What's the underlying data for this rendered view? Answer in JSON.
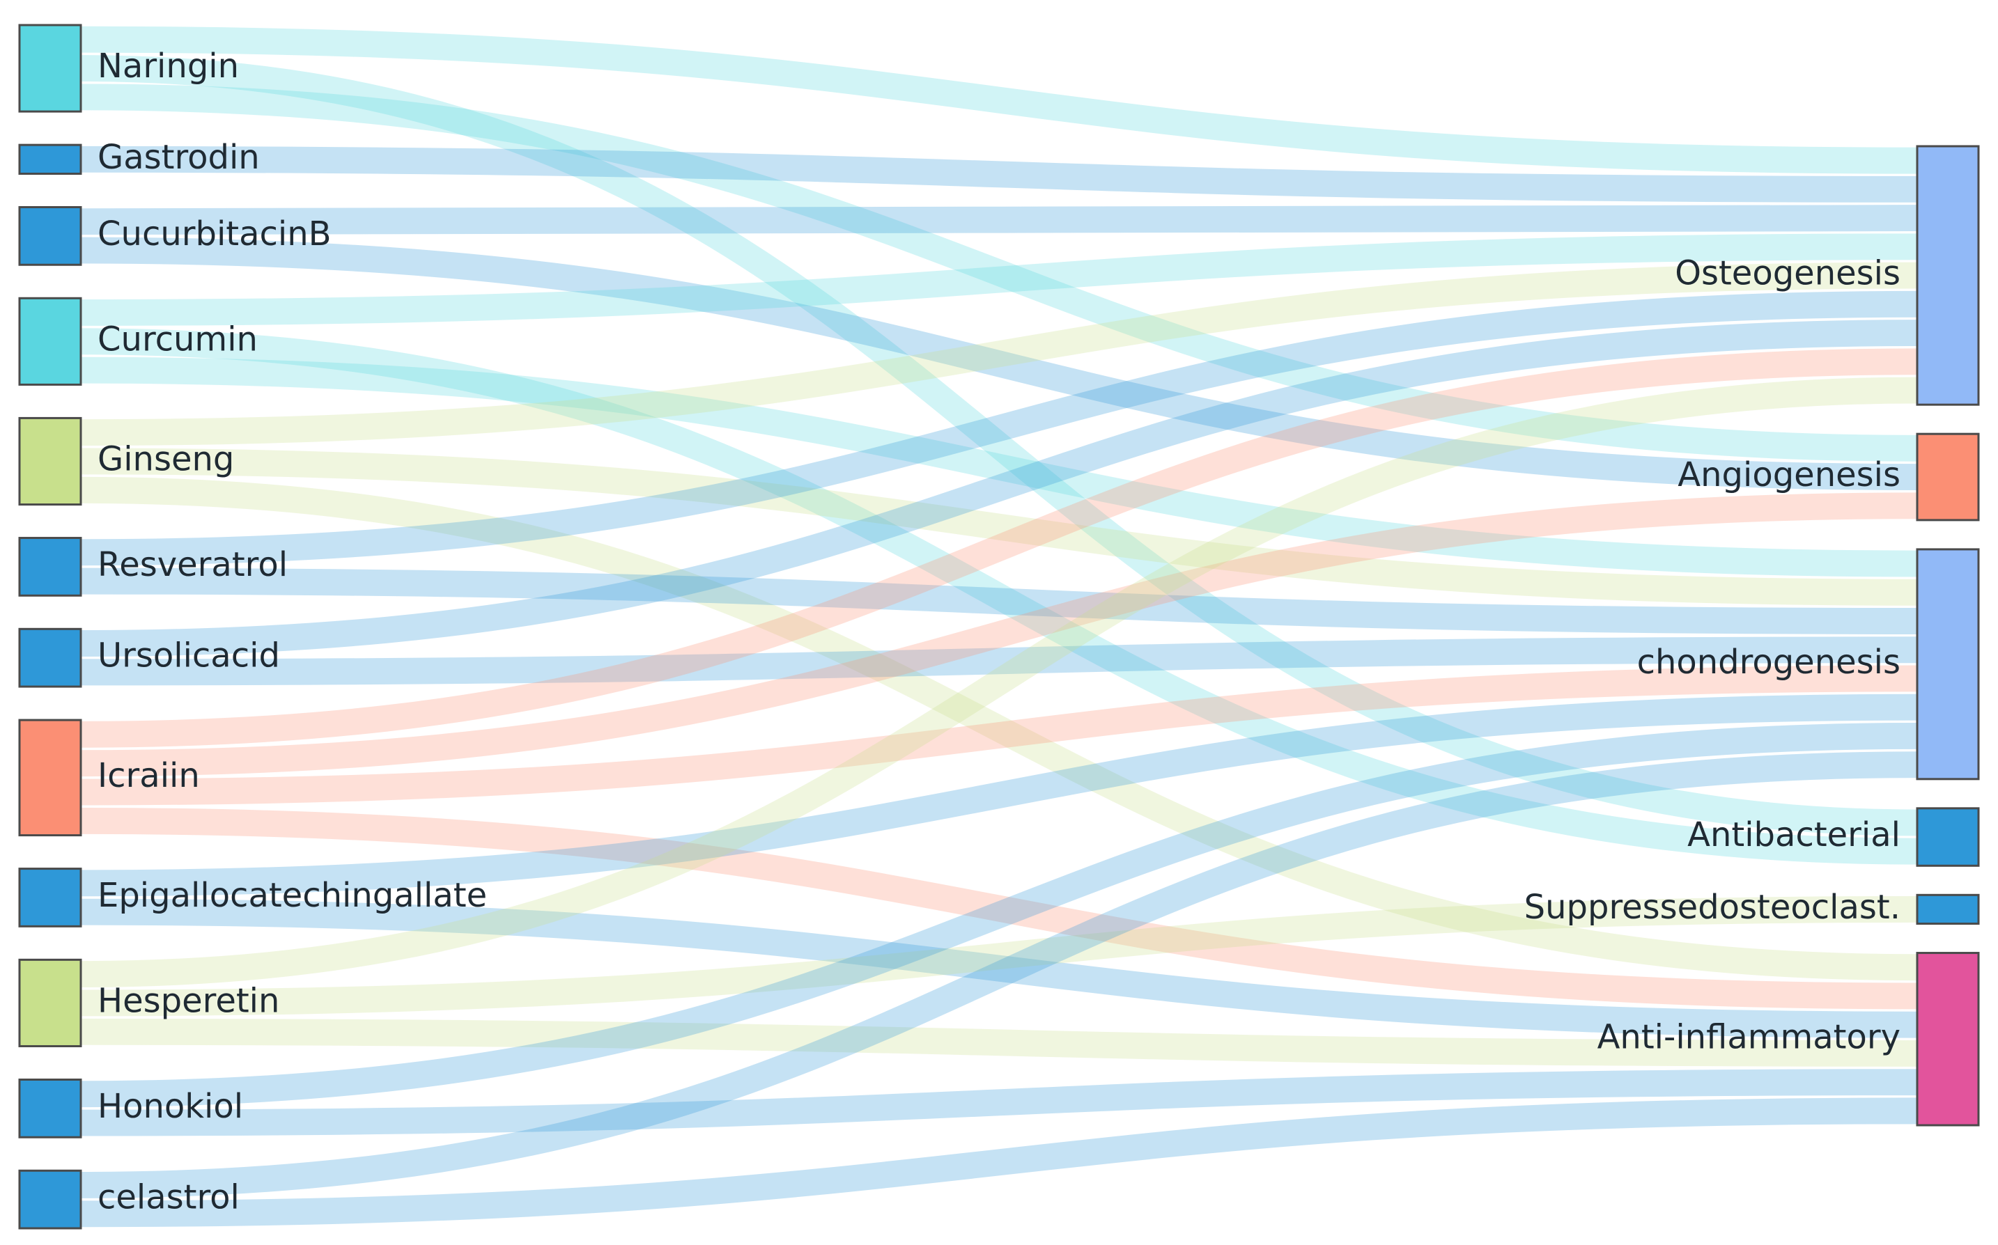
{
  "colors": {
    "cyan": "#5ad6e0",
    "blue": "#2e98d8",
    "olive": "#c8e08c",
    "salmon": "#fb8f74",
    "periwinkle": "#91b9f7",
    "magenta": "#e2549c"
  },
  "sources": [
    {
      "id": "Naringin",
      "label": "Naringin",
      "color": "cyan"
    },
    {
      "id": "Gastrodin",
      "label": "Gastrodin",
      "color": "blue"
    },
    {
      "id": "CucurbitacinB",
      "label": "CucurbitacinB",
      "color": "blue"
    },
    {
      "id": "Curcumin",
      "label": "Curcumin",
      "color": "cyan"
    },
    {
      "id": "Ginseng",
      "label": "Ginseng",
      "color": "olive"
    },
    {
      "id": "Resveratrol",
      "label": "Resveratrol",
      "color": "blue"
    },
    {
      "id": "Ursolicacid",
      "label": "Ursolicacid",
      "color": "blue"
    },
    {
      "id": "Icraiin",
      "label": "Icraiin",
      "color": "salmon"
    },
    {
      "id": "Epigallocatechingallate",
      "label": "Epigallocatechingallate",
      "color": "blue"
    },
    {
      "id": "Hesperetin",
      "label": "Hesperetin",
      "color": "olive"
    },
    {
      "id": "Honokiol",
      "label": "Honokiol",
      "color": "blue"
    },
    {
      "id": "celastrol",
      "label": "celastrol",
      "color": "blue"
    }
  ],
  "targets": [
    {
      "id": "Osteogenesis",
      "label": "Osteogenesis",
      "color": "periwinkle"
    },
    {
      "id": "Angiogenesis",
      "label": "Angiogenesis",
      "color": "salmon"
    },
    {
      "id": "chondrogenesis",
      "label": "chondrogenesis",
      "color": "periwinkle"
    },
    {
      "id": "Antibacterial",
      "label": "Antibacterial",
      "color": "blue"
    },
    {
      "id": "Suppressedosteoclast",
      "label": "Suppressedosteoclast.",
      "color": "blue"
    },
    {
      "id": "Anti-inflammatory",
      "label": "Anti-inflammatory",
      "color": "magenta"
    }
  ],
  "links": [
    {
      "source": "Naringin",
      "target": "Osteogenesis",
      "value": 1
    },
    {
      "source": "Naringin",
      "target": "Antibacterial",
      "value": 1
    },
    {
      "source": "Naringin",
      "target": "Angiogenesis",
      "value": 1
    },
    {
      "source": "Gastrodin",
      "target": "Osteogenesis",
      "value": 1
    },
    {
      "source": "CucurbitacinB",
      "target": "Osteogenesis",
      "value": 1
    },
    {
      "source": "CucurbitacinB",
      "target": "Angiogenesis",
      "value": 1
    },
    {
      "source": "Curcumin",
      "target": "Osteogenesis",
      "value": 1
    },
    {
      "source": "Curcumin",
      "target": "Antibacterial",
      "value": 1
    },
    {
      "source": "Curcumin",
      "target": "chondrogenesis",
      "value": 1
    },
    {
      "source": "Ginseng",
      "target": "Osteogenesis",
      "value": 1
    },
    {
      "source": "Ginseng",
      "target": "chondrogenesis",
      "value": 1
    },
    {
      "source": "Ginseng",
      "target": "Anti-inflammatory",
      "value": 1
    },
    {
      "source": "Resveratrol",
      "target": "Osteogenesis",
      "value": 1
    },
    {
      "source": "Resveratrol",
      "target": "chondrogenesis",
      "value": 1
    },
    {
      "source": "Ursolicacid",
      "target": "Osteogenesis",
      "value": 1
    },
    {
      "source": "Ursolicacid",
      "target": "chondrogenesis",
      "value": 1
    },
    {
      "source": "Icraiin",
      "target": "Osteogenesis",
      "value": 1
    },
    {
      "source": "Icraiin",
      "target": "Angiogenesis",
      "value": 1
    },
    {
      "source": "Icraiin",
      "target": "chondrogenesis",
      "value": 1
    },
    {
      "source": "Icraiin",
      "target": "Anti-inflammatory",
      "value": 1
    },
    {
      "source": "Epigallocatechingallate",
      "target": "chondrogenesis",
      "value": 1
    },
    {
      "source": "Epigallocatechingallate",
      "target": "Anti-inflammatory",
      "value": 1
    },
    {
      "source": "Hesperetin",
      "target": "Osteogenesis",
      "value": 1
    },
    {
      "source": "Hesperetin",
      "target": "Suppressedosteoclast",
      "value": 1
    },
    {
      "source": "Hesperetin",
      "target": "Anti-inflammatory",
      "value": 1
    },
    {
      "source": "Honokiol",
      "target": "chondrogenesis",
      "value": 1
    },
    {
      "source": "Honokiol",
      "target": "Anti-inflammatory",
      "value": 1
    },
    {
      "source": "celastrol",
      "target": "chondrogenesis",
      "value": 1
    },
    {
      "source": "celastrol",
      "target": "Anti-inflammatory",
      "value": 1
    }
  ]
}
